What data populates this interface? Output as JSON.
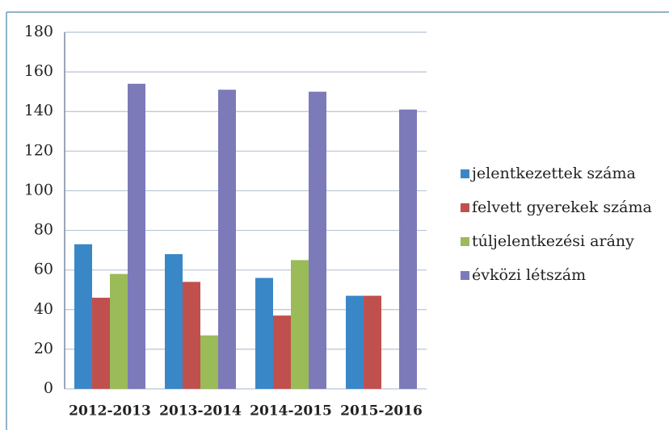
{
  "chart_data": {
    "type": "bar",
    "categories": [
      "2012-2013",
      "2013-2014",
      "2014-2015",
      "2015-2016"
    ],
    "series": [
      {
        "name": "jelentkezettek száma",
        "color": "#3a87c8",
        "values": [
          73,
          68,
          56,
          47
        ]
      },
      {
        "name": "felvett gyerekek száma",
        "color": "#c0504d",
        "values": [
          46,
          54,
          37,
          47
        ]
      },
      {
        "name": "túljelentkezési arány",
        "color": "#9bbb59",
        "values": [
          58,
          27,
          65,
          null
        ]
      },
      {
        "name": "évközi létszám",
        "color": "#7d7ab9",
        "values": [
          154,
          151,
          150,
          141
        ]
      }
    ],
    "ylim": [
      0,
      180
    ],
    "yticks": [
      0,
      20,
      40,
      60,
      80,
      100,
      120,
      140,
      160,
      180
    ],
    "grid": true,
    "legend": "right"
  }
}
